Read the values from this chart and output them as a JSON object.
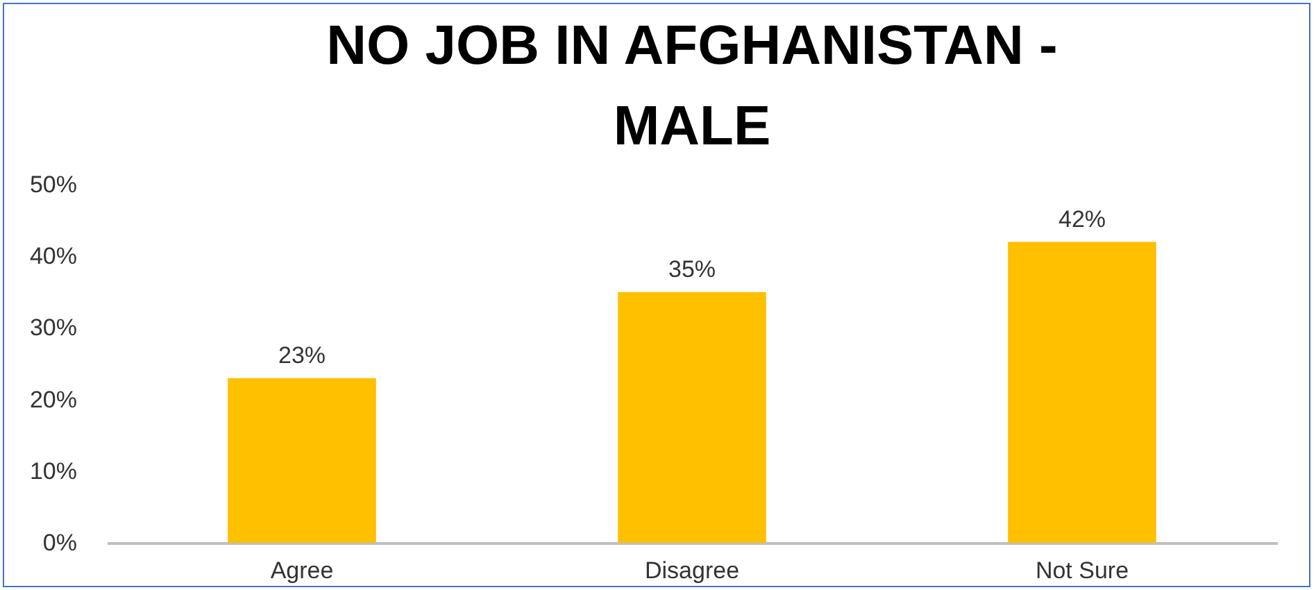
{
  "chart_data": {
    "type": "bar",
    "title": "NO JOB IN AFGHANISTAN - MALE",
    "categories": [
      "Agree",
      "Disagree",
      "Not Sure"
    ],
    "values": [
      23,
      35,
      42
    ],
    "value_labels": [
      "23%",
      "35%",
      "42%"
    ],
    "color": "#ffc000",
    "ylim": [
      0,
      50
    ],
    "yticks": [
      {
        "value": 0,
        "label": "0%"
      },
      {
        "value": 10,
        "label": "10%"
      },
      {
        "value": 20,
        "label": "20%"
      },
      {
        "value": 30,
        "label": "30%"
      },
      {
        "value": 40,
        "label": "40%"
      },
      {
        "value": 50,
        "label": "50%"
      }
    ],
    "grid": false
  }
}
